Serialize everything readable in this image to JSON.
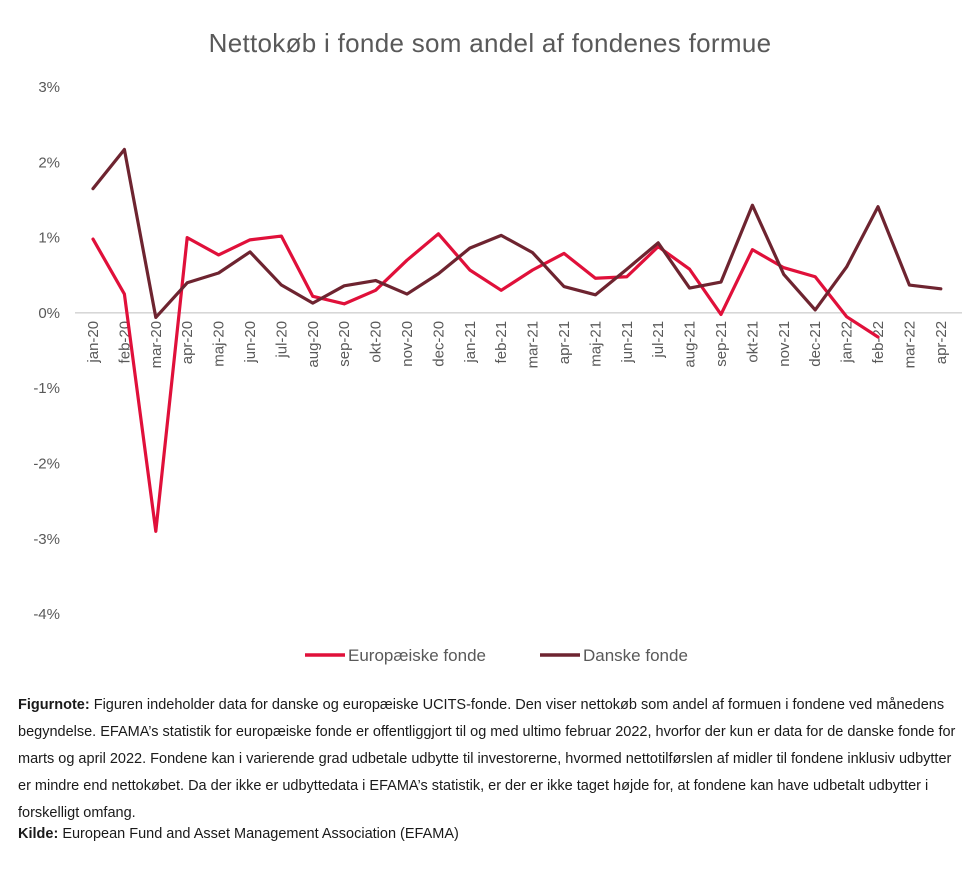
{
  "chart_data": {
    "type": "line",
    "title": "Nettokøb i fonde som andel af fondenes formue",
    "categories": [
      "jan-20",
      "feb-20",
      "mar-20",
      "apr-20",
      "maj-20",
      "jun-20",
      "jul-20",
      "aug-20",
      "sep-20",
      "okt-20",
      "nov-20",
      "dec-20",
      "jan-21",
      "feb-21",
      "mar-21",
      "apr-21",
      "maj-21",
      "jun-21",
      "jul-21",
      "aug-21",
      "sep-21",
      "okt-21",
      "nov-21",
      "dec-21",
      "jan-22",
      "feb-22",
      "mar-22",
      "apr-22"
    ],
    "y_tick_labels": [
      "3%",
      "2%",
      "1%",
      "0%",
      "-1%",
      "-2%",
      "-3%",
      "-4%"
    ],
    "ylim": [
      -4,
      3
    ],
    "grid": false,
    "legend_position": "bottom",
    "series": [
      {
        "name": "Europæiske fonde",
        "color": "#e0103a",
        "values": [
          0.98,
          0.25,
          -2.9,
          1.0,
          0.77,
          0.97,
          1.02,
          0.22,
          0.12,
          0.3,
          0.7,
          1.05,
          0.57,
          0.3,
          0.57,
          0.79,
          0.46,
          0.48,
          0.88,
          0.58,
          -0.02,
          0.84,
          0.6,
          0.48,
          -0.05,
          -0.32,
          null,
          null
        ]
      },
      {
        "name": "Danske fonde",
        "color": "#6e2430",
        "values": [
          1.65,
          2.17,
          -0.06,
          0.4,
          0.53,
          0.81,
          0.37,
          0.13,
          0.36,
          0.43,
          0.25,
          0.52,
          0.86,
          1.03,
          0.8,
          0.35,
          0.24,
          0.58,
          0.93,
          0.33,
          0.41,
          1.43,
          0.51,
          0.04,
          0.61,
          1.41,
          0.37,
          0.32
        ]
      }
    ]
  },
  "note": {
    "label": "Figurnote:",
    "text": "Figuren indeholder data for danske og europæiske UCITS-fonde. Den viser nettokøb som andel af formuen i fondene ved månedens begyndelse. EFAMA’s statistik for europæiske fonde er offentliggjort til og med ultimo februar 2022, hvorfor der kun er data for de danske fonde for marts og april 2022. Fondene kan i varierende grad udbetale udbytte til investorerne, hvormed nettotilførslen af midler til fondene inklusiv udbytter er mindre end nettokøbet. Da der ikke er udbyttedata i EFAMA’s statistik, er der er ikke taget højde for, at fondene kan have udbetalt udbytter i forskelligt omfang."
  },
  "source": {
    "label": "Kilde:",
    "text": "European Fund and Asset Management Association (EFAMA)"
  }
}
